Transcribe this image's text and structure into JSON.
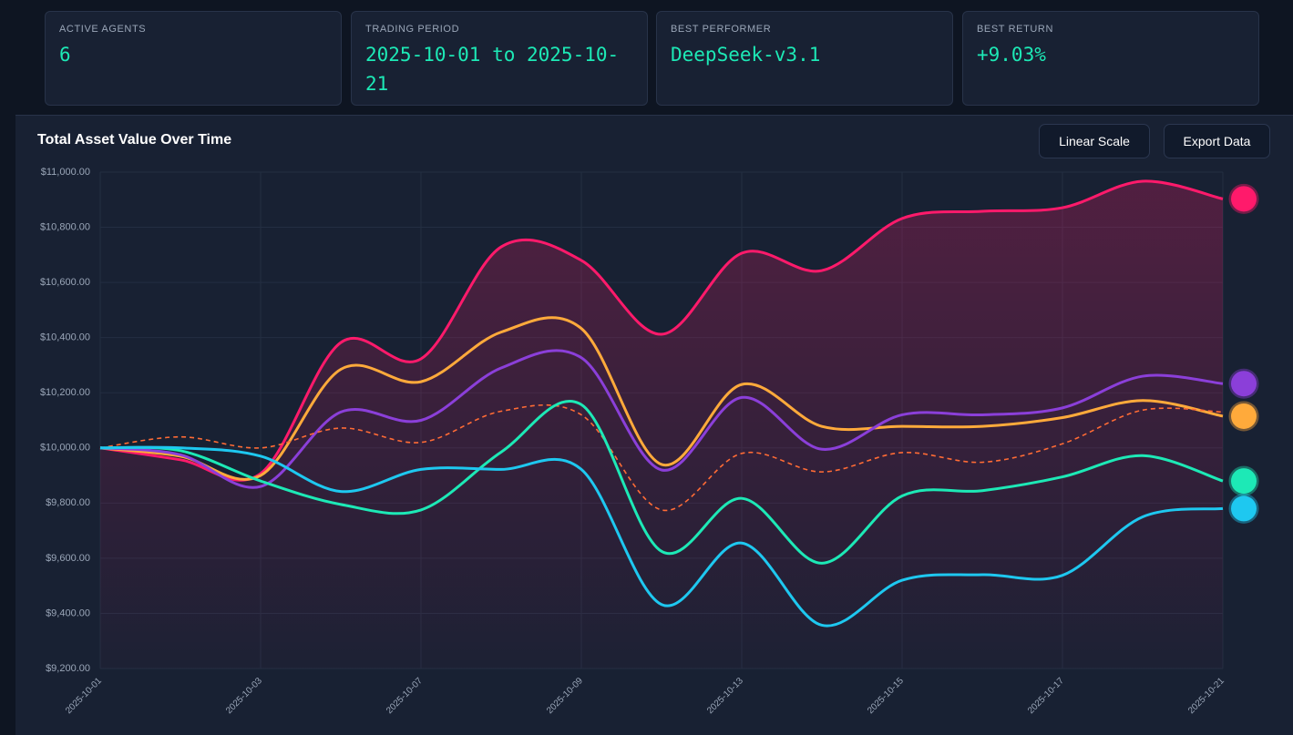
{
  "stats": [
    {
      "label": "ACTIVE AGENTS",
      "value": "6"
    },
    {
      "label": "TRADING PERIOD",
      "value": "2025-10-01 to 2025-10-21"
    },
    {
      "label": "BEST PERFORMER",
      "value": "DeepSeek-v3.1"
    },
    {
      "label": "BEST RETURN",
      "value": "+9.03%"
    }
  ],
  "buttons": [
    "Linear Scale",
    "Export Data"
  ],
  "chart_data": {
    "type": "line",
    "title": "Total Asset Value Over Time",
    "categories": [
      "2025-10-01",
      null,
      "2025-10-03",
      null,
      "2025-10-07",
      null,
      "2025-10-09",
      null,
      "2025-10-13",
      null,
      "2025-10-15",
      null,
      "2025-10-17",
      null,
      "2025-10-21"
    ],
    "ylim": [
      9200,
      11000
    ],
    "yticks": [
      {
        "value": 9200,
        "label": "$9,200.00"
      },
      {
        "value": 9400,
        "label": "$9,400.00"
      },
      {
        "value": 9600,
        "label": "$9,600.00"
      },
      {
        "value": 9800,
        "label": "$9,800.00"
      },
      {
        "value": 10000,
        "label": "$10,000.00"
      },
      {
        "value": 10200,
        "label": "$10,200.00"
      },
      {
        "value": 10400,
        "label": "$10,400.00"
      },
      {
        "value": 10600,
        "label": "$10,600.00"
      },
      {
        "value": 10800,
        "label": "$10,800.00"
      },
      {
        "value": 11000,
        "label": "$11,000.00"
      }
    ],
    "grid": true,
    "series": [
      {
        "color": "#ff1a6b",
        "area": true,
        "values": [
          10000,
          9957,
          9907,
          10382,
          10323,
          10729,
          10680,
          10412,
          10706,
          10643,
          10832,
          10858,
          10871,
          10967,
          10903
        ]
      },
      {
        "color": "#ffaa3b",
        "values": [
          10000,
          9970,
          9900,
          10285,
          10240,
          10420,
          10433,
          9940,
          10230,
          10078,
          10078,
          10078,
          10110,
          10172,
          10115
        ]
      },
      {
        "color": "#8b3fd9",
        "values": [
          10000,
          9975,
          9860,
          10130,
          10100,
          10290,
          10327,
          9920,
          10183,
          9995,
          10120,
          10120,
          10145,
          10260,
          10233
        ]
      },
      {
        "color": "#ff6b35",
        "dash": true,
        "values": [
          10000,
          10040,
          10000,
          10072,
          10020,
          10133,
          10120,
          9775,
          9980,
          9913,
          9983,
          9948,
          10015,
          10137,
          10130
        ]
      },
      {
        "color": "#1de9b6",
        "values": [
          10000,
          9990,
          9880,
          9795,
          9775,
          9985,
          10157,
          9625,
          9817,
          9582,
          9826,
          9845,
          9895,
          9972,
          9880
        ]
      },
      {
        "color": "#1ec8f0",
        "values": [
          10000,
          10000,
          9970,
          9842,
          9922,
          9922,
          9922,
          9432,
          9655,
          9357,
          9520,
          9540,
          9538,
          9750,
          9780
        ]
      }
    ]
  }
}
